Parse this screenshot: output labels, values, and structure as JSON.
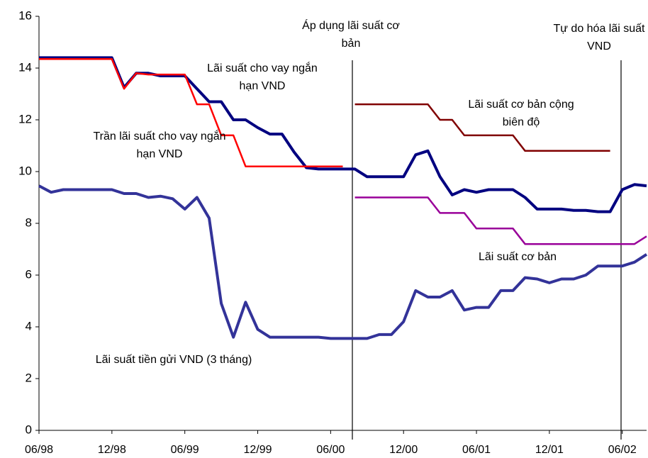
{
  "chart_data": {
    "type": "line",
    "categories": [
      "06/98",
      null,
      null,
      null,
      null,
      null,
      "12/98",
      null,
      null,
      null,
      null,
      null,
      "06/99",
      null,
      null,
      null,
      null,
      null,
      "12/99",
      null,
      null,
      null,
      null,
      null,
      "06/00",
      null,
      null,
      null,
      null,
      null,
      "12/00",
      null,
      null,
      null,
      null,
      null,
      "06/01",
      null,
      null,
      null,
      null,
      null,
      "12/01",
      null,
      null,
      null,
      null,
      null,
      "06/02",
      null,
      null
    ],
    "ylim": [
      0,
      16
    ],
    "yticks": [
      0,
      2,
      4,
      6,
      8,
      10,
      12,
      14,
      16
    ],
    "series": [
      {
        "name": "Lãi suất tiền gửi VND (3 tháng)",
        "color": "#333399",
        "values": [
          9.45,
          9.2,
          9.3,
          9.3,
          9.3,
          9.3,
          9.3,
          9.15,
          9.15,
          9.0,
          9.05,
          8.95,
          8.55,
          9.0,
          8.2,
          4.9,
          3.6,
          4.95,
          3.9,
          3.6,
          3.6,
          3.6,
          3.6,
          3.6,
          3.55,
          3.55,
          3.55,
          3.55,
          3.7,
          3.7,
          4.2,
          5.4,
          5.15,
          5.15,
          5.4,
          4.65,
          4.75,
          4.75,
          5.4,
          5.4,
          5.9,
          5.85,
          5.7,
          5.85,
          5.85,
          6.0,
          6.35,
          6.35,
          6.35,
          6.5,
          6.8
        ]
      },
      {
        "name": "Lãi suất cho vay ngắn hạn VND",
        "color": "#000080",
        "values": [
          14.4,
          14.4,
          14.4,
          14.4,
          14.4,
          14.4,
          14.4,
          13.25,
          13.8,
          13.8,
          13.7,
          13.7,
          13.7,
          13.2,
          12.7,
          12.7,
          12.0,
          12.0,
          11.7,
          11.45,
          11.45,
          10.75,
          10.15,
          10.1,
          10.1,
          10.1,
          10.1,
          9.8,
          9.8,
          9.8,
          9.8,
          10.65,
          10.8,
          9.8,
          9.1,
          9.3,
          9.2,
          9.3,
          9.3,
          9.3,
          9.0,
          8.55,
          8.55,
          8.55,
          8.5,
          8.5,
          8.45,
          8.45,
          9.3,
          9.5,
          9.45
        ]
      },
      {
        "name": "Trần lãi suất cho vay ngắn hạn VND",
        "color": "#ff0000",
        "values": [
          14.35,
          14.35,
          14.35,
          14.35,
          14.35,
          14.35,
          14.35,
          13.2,
          13.8,
          13.75,
          13.75,
          13.75,
          13.75,
          12.6,
          12.6,
          11.4,
          11.4,
          10.2,
          10.2,
          10.2,
          10.2,
          10.2,
          10.2,
          10.2,
          10.2,
          10.2,
          null,
          null,
          null,
          null,
          null,
          null,
          null,
          null,
          null,
          null,
          null,
          null,
          null,
          null,
          null,
          null,
          null,
          null,
          null,
          null,
          null,
          null,
          null,
          null,
          null
        ]
      },
      {
        "name": "Lãi suất cơ bản cộng biên độ",
        "color": "#800000",
        "values": [
          null,
          null,
          null,
          null,
          null,
          null,
          null,
          null,
          null,
          null,
          null,
          null,
          null,
          null,
          null,
          null,
          null,
          null,
          null,
          null,
          null,
          null,
          null,
          null,
          null,
          null,
          12.6,
          12.6,
          12.6,
          12.6,
          12.6,
          12.6,
          12.6,
          12.0,
          12.0,
          11.4,
          11.4,
          11.4,
          11.4,
          11.4,
          10.8,
          10.8,
          10.8,
          10.8,
          10.8,
          10.8,
          10.8,
          10.8,
          null,
          null,
          null
        ]
      },
      {
        "name": "Lãi suất cơ bản",
        "color": "#990099",
        "values": [
          null,
          null,
          null,
          null,
          null,
          null,
          null,
          null,
          null,
          null,
          null,
          null,
          null,
          null,
          null,
          null,
          null,
          null,
          null,
          null,
          null,
          null,
          null,
          null,
          null,
          null,
          9.0,
          9.0,
          9.0,
          9.0,
          9.0,
          9.0,
          9.0,
          8.4,
          8.4,
          8.4,
          7.8,
          7.8,
          7.8,
          7.8,
          7.2,
          7.2,
          7.2,
          7.2,
          7.2,
          7.2,
          7.2,
          7.2,
          7.2,
          7.2,
          7.5
        ]
      }
    ],
    "annotations": [
      "Áp dụng lãi suất cơ bản",
      "Tự do hóa lãi suất VND"
    ]
  }
}
